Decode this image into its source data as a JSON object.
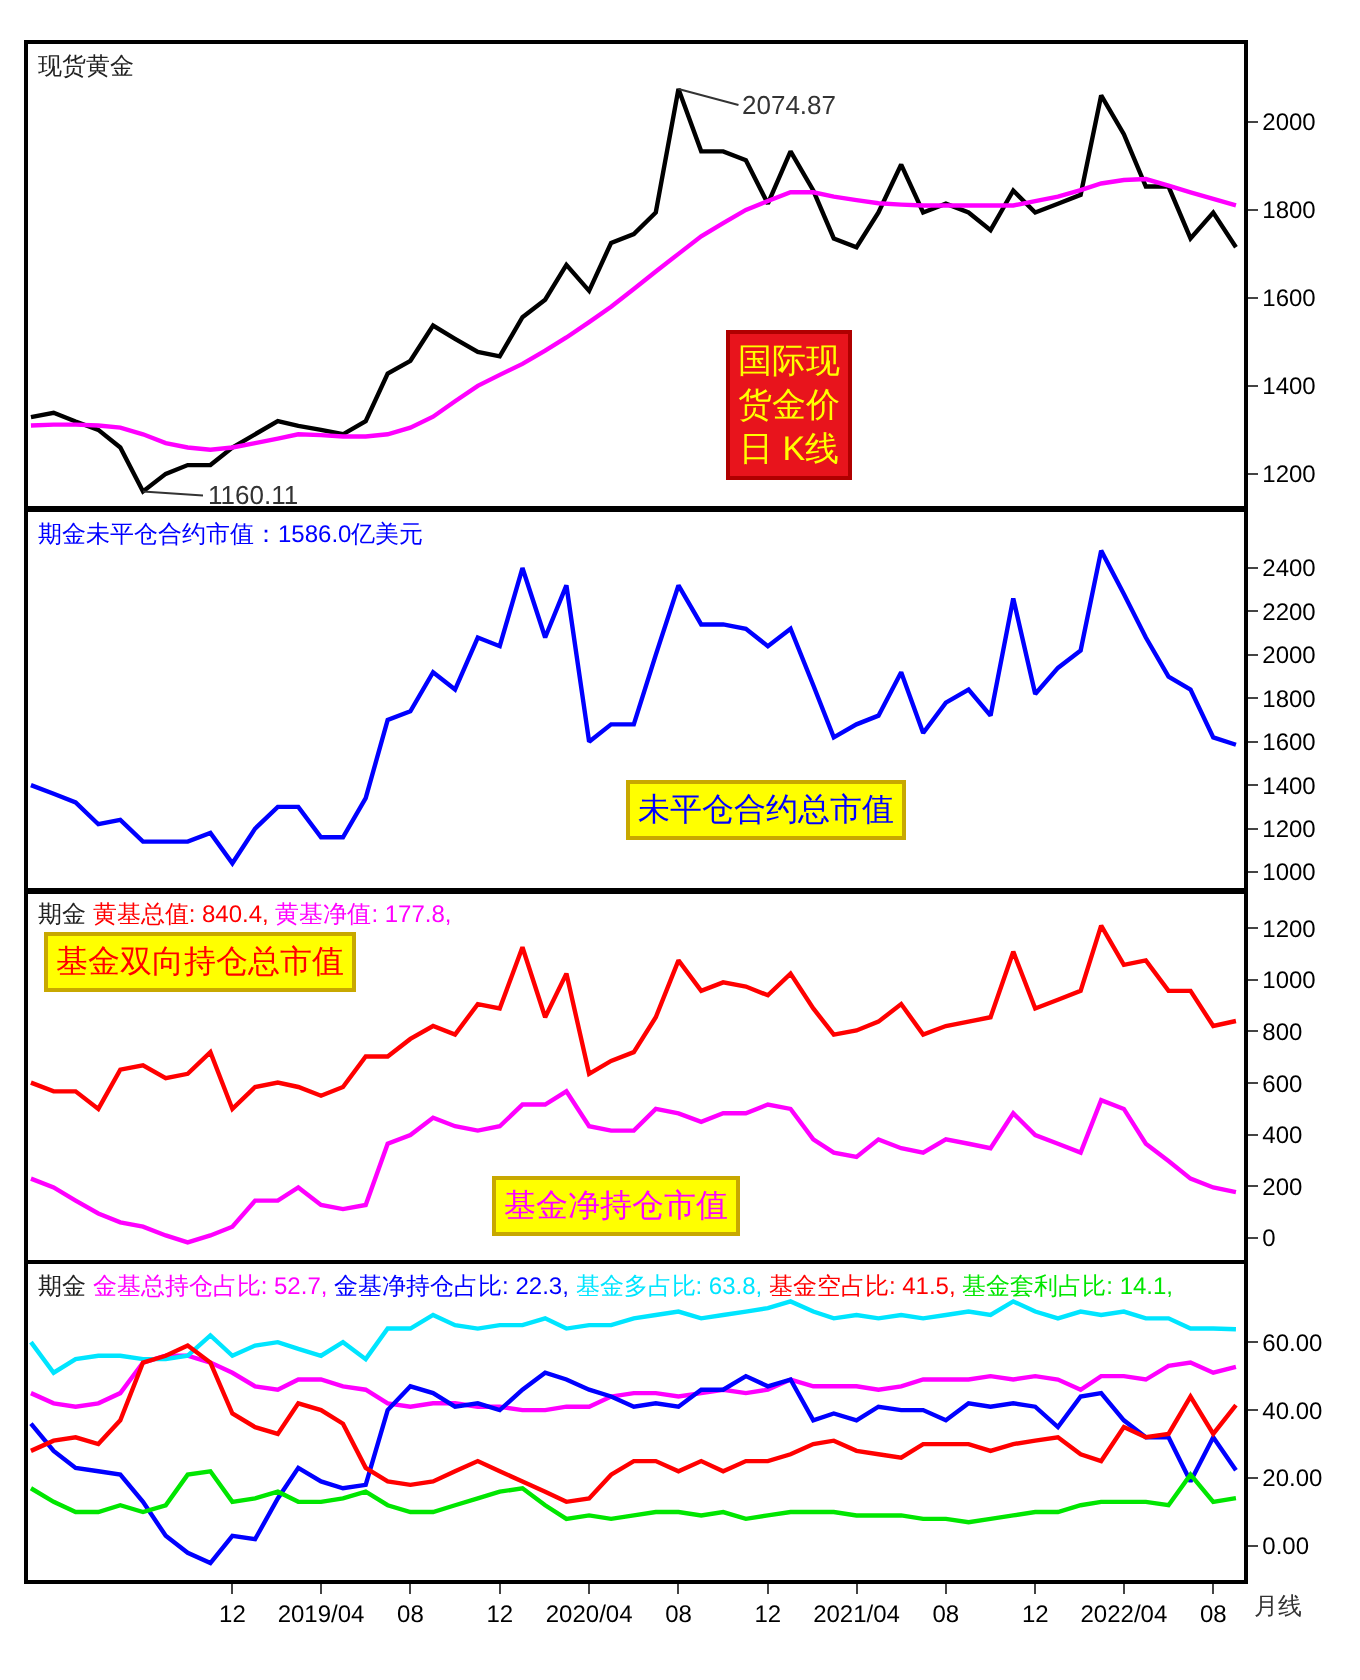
{
  "chart_data": [
    {
      "type": "line",
      "title": "现货黄金",
      "x": [
        "2018-03",
        "2018-04",
        "2018-05",
        "2018-06",
        "2018-07",
        "2018-08",
        "2018-09",
        "2018-10",
        "2018-11",
        "2018-12",
        "2019-01",
        "2019-02",
        "2019-03",
        "2019-04",
        "2019-05",
        "2019-06",
        "2019-07",
        "2019-08",
        "2019-09",
        "2019-10",
        "2019-11",
        "2019-12",
        "2020-01",
        "2020-02",
        "2020-03",
        "2020-04",
        "2020-05",
        "2020-06",
        "2020-07",
        "2020-08",
        "2020-09",
        "2020-10",
        "2020-11",
        "2020-12",
        "2021-01",
        "2021-02",
        "2021-03",
        "2021-04",
        "2021-05",
        "2021-06",
        "2021-07",
        "2021-08",
        "2021-09",
        "2021-10",
        "2021-11",
        "2021-12",
        "2022-01",
        "2022-02",
        "2022-03",
        "2022-04",
        "2022-05",
        "2022-06",
        "2022-07",
        "2022-08",
        "2022-09"
      ],
      "series": [
        {
          "color": "#000000",
          "values": [
            1329,
            1339,
            1319,
            1300,
            1260,
            1160.11,
            1200,
            1220,
            1220,
            1260,
            1290,
            1320,
            1309,
            1300,
            1290,
            1320,
            1428,
            1457,
            1537,
            1507,
            1477,
            1467,
            1556,
            1596,
            1675,
            1616,
            1725,
            1745,
            1794,
            2074.87,
            1933,
            1933,
            1913,
            1814,
            1933,
            1844,
            1735,
            1715,
            1794,
            1903,
            1794,
            1814,
            1794,
            1754,
            1844,
            1794,
            1814,
            1834,
            2060,
            1972,
            1853,
            1853,
            1735,
            1794,
            1715
          ]
        },
        {
          "color": "#ff00ff",
          "values": [
            1310,
            1312,
            1312,
            1310,
            1305,
            1290,
            1270,
            1260,
            1255,
            1260,
            1270,
            1280,
            1290,
            1288,
            1285,
            1285,
            1290,
            1305,
            1330,
            1365,
            1400,
            1425,
            1450,
            1480,
            1510,
            1545,
            1580,
            1620,
            1660,
            1700,
            1740,
            1770,
            1800,
            1820,
            1840,
            1840,
            1830,
            1822,
            1815,
            1812,
            1810,
            1810,
            1810,
            1810,
            1810,
            1820,
            1830,
            1845,
            1860,
            1868,
            1870,
            1855,
            1840,
            1825,
            1810
          ]
        }
      ],
      "annotations": [
        {
          "text": "2074.87",
          "x": "2020-08",
          "y": 2074.87
        },
        {
          "text": "1160.11",
          "x": "2018-08",
          "y": 1160.11
        },
        "国际现货金价日 K线"
      ],
      "xlim": [
        "2018-02-25",
        "2022-09-12"
      ],
      "ylim": [
        1127,
        2177
      ],
      "yticks": [
        1200,
        1400,
        1600,
        1800,
        2000
      ],
      "tick_labels": "y"
    },
    {
      "type": "line",
      "title": "期金未平仓合约市值：1586.0亿美元",
      "x": [
        "2018-03",
        "2018-04",
        "2018-05",
        "2018-06",
        "2018-07",
        "2018-08",
        "2018-09",
        "2018-10",
        "2018-11",
        "2018-12",
        "2019-01",
        "2019-02",
        "2019-03",
        "2019-04",
        "2019-05",
        "2019-06",
        "2019-07",
        "2019-08",
        "2019-09",
        "2019-10",
        "2019-11",
        "2019-12",
        "2020-01",
        "2020-02",
        "2020-03",
        "2020-04",
        "2020-05",
        "2020-06",
        "2020-07",
        "2020-08",
        "2020-09",
        "2020-10",
        "2020-11",
        "2020-12",
        "2021-01",
        "2021-02",
        "2021-03",
        "2021-04",
        "2021-05",
        "2021-06",
        "2021-07",
        "2021-08",
        "2021-09",
        "2021-10",
        "2021-11",
        "2021-12",
        "2022-01",
        "2022-02",
        "2022-03",
        "2022-04",
        "2022-05",
        "2022-06",
        "2022-07",
        "2022-08",
        "2022-09"
      ],
      "series": [
        {
          "color": "#0000ff",
          "values": [
            1400,
            1360,
            1320,
            1220,
            1240,
            1140,
            1140,
            1140,
            1180,
            1040,
            1200,
            1300,
            1300,
            1160,
            1160,
            1340,
            1700,
            1740,
            1920,
            1840,
            2080,
            2040,
            2400,
            2080,
            2320,
            1600,
            1680,
            1680,
            2000,
            2320,
            2140,
            2140,
            2120,
            2040,
            2120,
            1860,
            1620,
            1680,
            1720,
            1920,
            1640,
            1780,
            1840,
            1720,
            2260,
            1820,
            1940,
            2020,
            2480,
            2280,
            2080,
            1900,
            1840,
            1620,
            1586.0
          ]
        }
      ],
      "annotations": [
        "未平仓合约总市值"
      ],
      "xlim": [
        "2018-02-25",
        "2022-09-12"
      ],
      "ylim": [
        917,
        2658
      ],
      "yticks": [
        1000,
        1200,
        1400,
        1600,
        1800,
        2000,
        2200,
        2400
      ],
      "tick_labels": "y"
    },
    {
      "type": "line",
      "title": "期金",
      "x": [
        "2018-03",
        "2018-04",
        "2018-05",
        "2018-06",
        "2018-07",
        "2018-08",
        "2018-09",
        "2018-10",
        "2018-11",
        "2018-12",
        "2019-01",
        "2019-02",
        "2019-03",
        "2019-04",
        "2019-05",
        "2019-06",
        "2019-07",
        "2019-08",
        "2019-09",
        "2019-10",
        "2019-11",
        "2019-12",
        "2020-01",
        "2020-02",
        "2020-03",
        "2020-04",
        "2020-05",
        "2020-06",
        "2020-07",
        "2020-08",
        "2020-09",
        "2020-10",
        "2020-11",
        "2020-12",
        "2021-01",
        "2021-02",
        "2021-03",
        "2021-04",
        "2021-05",
        "2021-06",
        "2021-07",
        "2021-08",
        "2021-09",
        "2021-10",
        "2021-11",
        "2021-12",
        "2022-01",
        "2022-02",
        "2022-03",
        "2022-04",
        "2022-05",
        "2022-06",
        "2022-07",
        "2022-08",
        "2022-09"
      ],
      "series": [
        {
          "name": "黄基总值: 840.4,",
          "color": "#ff0000",
          "values": [
            602,
            568,
            568,
            500,
            652,
            669,
            619,
            636,
            720,
            500,
            585,
            602,
            585,
            551,
            585,
            703,
            703,
            771,
            821,
            788,
            906,
            889,
            1126,
            855,
            1024,
            636,
            686,
            720,
            855,
            1075,
            957,
            990,
            974,
            940,
            1024,
            889,
            788,
            804,
            838,
            906,
            788,
            821,
            838,
            855,
            1109,
            889,
            923,
            957,
            1210,
            1058,
            1075,
            957,
            957,
            821,
            840.4
          ]
        },
        {
          "name": "黄基净值: 177.8,",
          "color": "#ff00ff",
          "values": [
            230,
            196,
            145,
            95,
            61,
            44,
            10,
            -17,
            10,
            44,
            145,
            145,
            196,
            128,
            112,
            128,
            365,
            399,
            466,
            433,
            416,
            433,
            517,
            517,
            568,
            433,
            416,
            416,
            500,
            483,
            450,
            483,
            483,
            517,
            500,
            382,
            331,
            314,
            382,
            348,
            331,
            382,
            365,
            348,
            483,
            399,
            365,
            331,
            534,
            500,
            365,
            298,
            230,
            196,
            177.8
          ]
        }
      ],
      "annotations": [
        "基金双向持仓总市值",
        "基金净持仓市值"
      ],
      "xlim": [
        "2018-02-25",
        "2022-09-12"
      ],
      "ylim": [
        -85,
        1340
      ],
      "yticks": [
        0,
        200,
        400,
        600,
        800,
        1000,
        1200
      ],
      "tick_labels": "y"
    },
    {
      "type": "line",
      "title": "期金",
      "x": [
        "2018-03",
        "2018-04",
        "2018-05",
        "2018-06",
        "2018-07",
        "2018-08",
        "2018-09",
        "2018-10",
        "2018-11",
        "2018-12",
        "2019-01",
        "2019-02",
        "2019-03",
        "2019-04",
        "2019-05",
        "2019-06",
        "2019-07",
        "2019-08",
        "2019-09",
        "2019-10",
        "2019-11",
        "2019-12",
        "2020-01",
        "2020-02",
        "2020-03",
        "2020-04",
        "2020-05",
        "2020-06",
        "2020-07",
        "2020-08",
        "2020-09",
        "2020-10",
        "2020-11",
        "2020-12",
        "2021-01",
        "2021-02",
        "2021-03",
        "2021-04",
        "2021-05",
        "2021-06",
        "2021-07",
        "2021-08",
        "2021-09",
        "2021-10",
        "2021-11",
        "2021-12",
        "2022-01",
        "2022-02",
        "2022-03",
        "2022-04",
        "2022-05",
        "2022-06",
        "2022-07",
        "2022-08",
        "2022-09"
      ],
      "series": [
        {
          "name": "金基总持仓占比: 52.7,",
          "color": "#ff00ff",
          "values": [
            45,
            42,
            41,
            42,
            45,
            54,
            56,
            56,
            54,
            51,
            47,
            46,
            49,
            49,
            47,
            46,
            42,
            41,
            42,
            42,
            41,
            41,
            40,
            40,
            41,
            41,
            44,
            45,
            45,
            44,
            45,
            46,
            45,
            46,
            49,
            47,
            47,
            47,
            46,
            47,
            49,
            49,
            49,
            50,
            49,
            50,
            49,
            46,
            50,
            50,
            49,
            53,
            54,
            51,
            52.7
          ]
        },
        {
          "name": "金基净持仓占比: 22.3,",
          "color": "#0000ff",
          "values": [
            36,
            28,
            23,
            22,
            21,
            13,
            3,
            -2,
            -5,
            3,
            2,
            14,
            23,
            19,
            17,
            18,
            40,
            47,
            45,
            41,
            42,
            40,
            46,
            51,
            49,
            46,
            44,
            41,
            42,
            41,
            46,
            46,
            50,
            47,
            49,
            37,
            39,
            37,
            41,
            40,
            40,
            37,
            42,
            41,
            42,
            41,
            35,
            44,
            45,
            37,
            32,
            32,
            19,
            32,
            22.3
          ]
        },
        {
          "name": "基金多占比: 63.8,",
          "color": "#00e5ff",
          "values": [
            60,
            51,
            55,
            56,
            56,
            55,
            55,
            56,
            62,
            56,
            59,
            60,
            58,
            56,
            60,
            55,
            64,
            64,
            68,
            65,
            64,
            65,
            65,
            67,
            64,
            65,
            65,
            67,
            68,
            69,
            67,
            68,
            69,
            70,
            72,
            69,
            67,
            68,
            67,
            68,
            67,
            68,
            69,
            68,
            72,
            69,
            67,
            69,
            68,
            69,
            67,
            67,
            64,
            64,
            63.8
          ]
        },
        {
          "name": "基金空占比: 41.5,",
          "color": "#ff0000",
          "values": [
            28,
            31,
            32,
            30,
            37,
            54,
            56,
            59,
            54,
            39,
            35,
            33,
            42,
            40,
            36,
            23,
            19,
            18,
            19,
            22,
            25,
            22,
            19,
            16,
            13,
            14,
            21,
            25,
            25,
            22,
            25,
            22,
            25,
            25,
            27,
            30,
            31,
            28,
            27,
            26,
            30,
            30,
            30,
            28,
            30,
            31,
            32,
            27,
            25,
            35,
            32,
            33,
            44,
            33,
            41.5
          ]
        },
        {
          "name": "基金套利占比: 14.1,",
          "color": "#00e600",
          "values": [
            17,
            13,
            10,
            10,
            12,
            10,
            12,
            21,
            22,
            13,
            14,
            16,
            13,
            13,
            14,
            16,
            12,
            10,
            10,
            12,
            14,
            16,
            17,
            12,
            8,
            9,
            8,
            9,
            10,
            10,
            9,
            10,
            8,
            9,
            10,
            10,
            10,
            9,
            9,
            9,
            8,
            8,
            7,
            8,
            9,
            10,
            10,
            12,
            13,
            13,
            13,
            12,
            21,
            13,
            14.1
          ]
        }
      ],
      "annotations": [
        "月线"
      ],
      "xlim": [
        "2018-02-25",
        "2022-09-12"
      ],
      "xticks": [
        {
          "value": "2018-12",
          "label": "12"
        },
        {
          "value": "2019-04",
          "label": "2019/04"
        },
        {
          "value": "2019-08",
          "label": "08"
        },
        {
          "value": "2019-12",
          "label": "12"
        },
        {
          "value": "2020-04",
          "label": "2020/04"
        },
        {
          "value": "2020-08",
          "label": "08"
        },
        {
          "value": "2020-12",
          "label": "12"
        },
        {
          "value": "2021-04",
          "label": "2021/04"
        },
        {
          "value": "2021-08",
          "label": "08"
        },
        {
          "value": "2021-12",
          "label": "12"
        },
        {
          "value": "2022-04",
          "label": "2022/04"
        },
        {
          "value": "2022-08",
          "label": "08"
        }
      ],
      "ylim": [
        -10,
        83
      ],
      "yticks": [
        {
          "value": 0,
          "label": "0.00"
        },
        {
          "value": 20,
          "label": "20.00"
        },
        {
          "value": 40,
          "label": "40.00"
        },
        {
          "value": 60,
          "label": "60.00"
        }
      ],
      "tick_labels": true
    }
  ]
}
